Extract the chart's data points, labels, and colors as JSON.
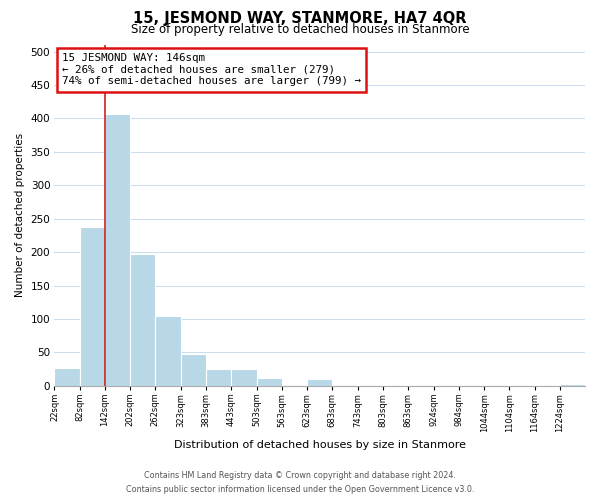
{
  "title": "15, JESMOND WAY, STANMORE, HA7 4QR",
  "subtitle": "Size of property relative to detached houses in Stanmore",
  "xlabel": "Distribution of detached houses by size in Stanmore",
  "ylabel": "Number of detached properties",
  "bar_edges": [
    22,
    82,
    142,
    202,
    262,
    323,
    383,
    443,
    503,
    563,
    623,
    683,
    743,
    803,
    863,
    924,
    984,
    1044,
    1104,
    1164,
    1224
  ],
  "bar_heights": [
    26,
    237,
    407,
    197,
    105,
    48,
    25,
    25,
    11,
    0,
    10,
    0,
    0,
    0,
    0,
    0,
    0,
    0,
    0,
    0,
    3
  ],
  "tick_labels": [
    "22sqm",
    "82sqm",
    "142sqm",
    "202sqm",
    "262sqm",
    "323sqm",
    "383sqm",
    "443sqm",
    "503sqm",
    "563sqm",
    "623sqm",
    "683sqm",
    "743sqm",
    "803sqm",
    "863sqm",
    "924sqm",
    "984sqm",
    "1044sqm",
    "1104sqm",
    "1164sqm",
    "1224sqm"
  ],
  "bar_color": "#b8d8e8",
  "property_line_x": 142,
  "property_line_label": "15 JESMOND WAY: 146sqm",
  "annotation_line1": "← 26% of detached houses are smaller (279)",
  "annotation_line2": "74% of semi-detached houses are larger (799) →",
  "ylim": [
    0,
    510
  ],
  "yticks": [
    0,
    50,
    100,
    150,
    200,
    250,
    300,
    350,
    400,
    450,
    500
  ],
  "footer_line1": "Contains HM Land Registry data © Crown copyright and database right 2024.",
  "footer_line2": "Contains public sector information licensed under the Open Government Licence v3.0.",
  "bg_color": "#ffffff",
  "grid_color": "#ccddee",
  "ann_box_color": "#dd1111",
  "red_line_color": "#cc2222"
}
